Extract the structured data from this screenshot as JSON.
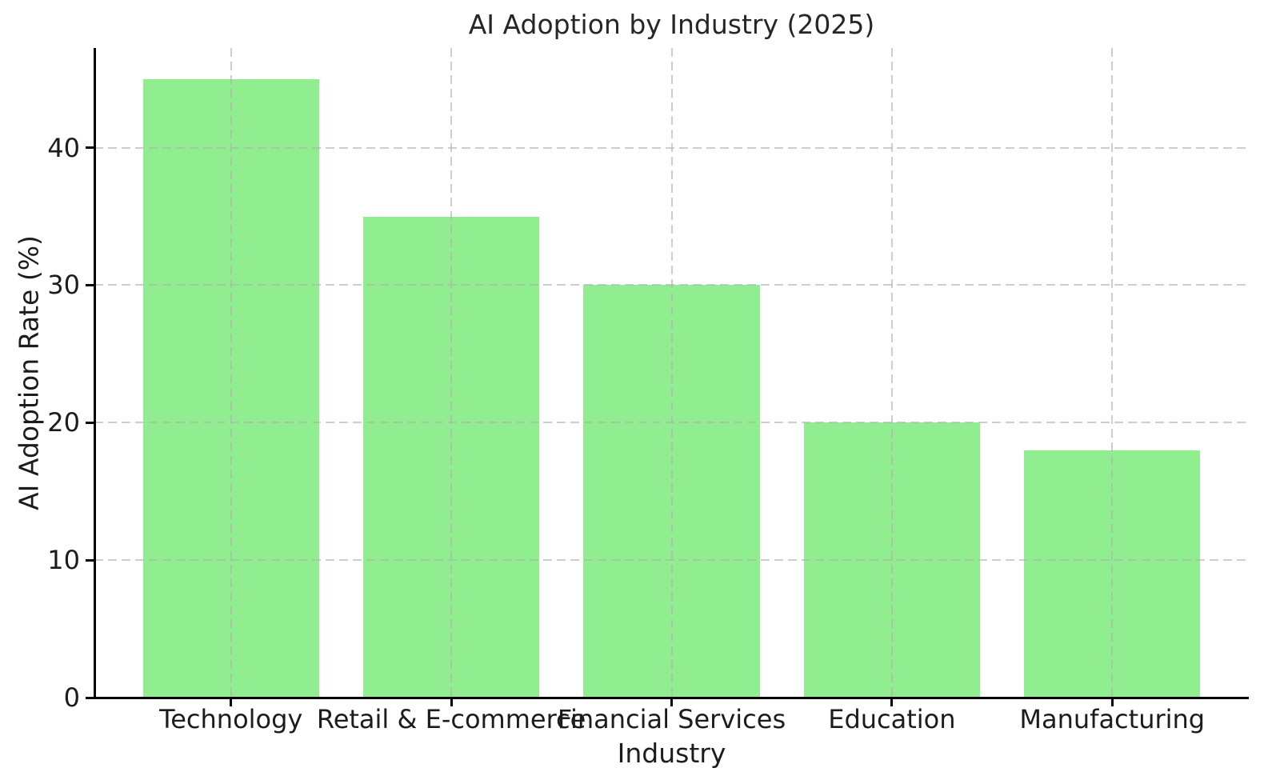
{
  "chart_data": {
    "type": "bar",
    "title": "AI Adoption by Industry (2025)",
    "xlabel": "Industry",
    "ylabel": "AI Adoption Rate (%)",
    "categories": [
      "Technology",
      "Retail & E-commerce",
      "Financial Services",
      "Education",
      "Manufacturing"
    ],
    "values": [
      45,
      35,
      30,
      20,
      18
    ],
    "yticks": [
      0,
      10,
      20,
      30,
      40
    ],
    "ylim": [
      0,
      47.25
    ],
    "grid": "dashed",
    "legend": "none",
    "bar_color": "#90EE90",
    "grid_color_rgba": "rgba(176,176,176,0.62)",
    "spine_color": "#000000",
    "text_color": "#1c1c1c",
    "background_color": "#ffffff"
  }
}
